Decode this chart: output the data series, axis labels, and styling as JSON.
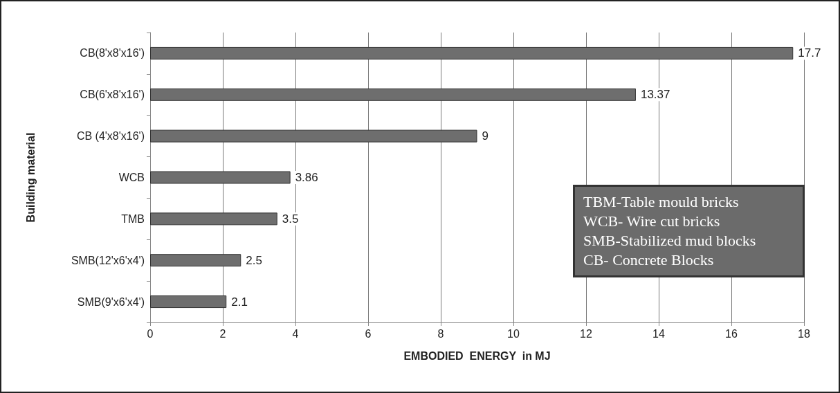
{
  "chart_data": {
    "type": "bar",
    "orientation": "horizontal",
    "xlabel": "EMBODIED  ENERGY  in MJ",
    "ylabel": "Building material",
    "categories": [
      "CB(8'x8'x16')",
      "CB(6'x8'x16')",
      "CB (4'x8'x16')",
      "WCB",
      "TMB",
      "SMB(12'x6'x4')",
      "SMB(9'x6'x4')"
    ],
    "values": [
      17.7,
      13.37,
      9,
      3.86,
      3.5,
      2.5,
      2.1
    ],
    "color": "#6e6e6e",
    "data_labels": true,
    "xlim": [
      0,
      18
    ],
    "xticks": [
      0,
      2,
      4,
      6,
      8,
      10,
      12,
      14,
      16,
      18
    ],
    "grid": "x",
    "annotations": [
      "TBM-Table mould bricks",
      "WCB- Wire cut bricks",
      "SMB-Stabilized mud blocks",
      "CB- Concrete Blocks"
    ]
  }
}
